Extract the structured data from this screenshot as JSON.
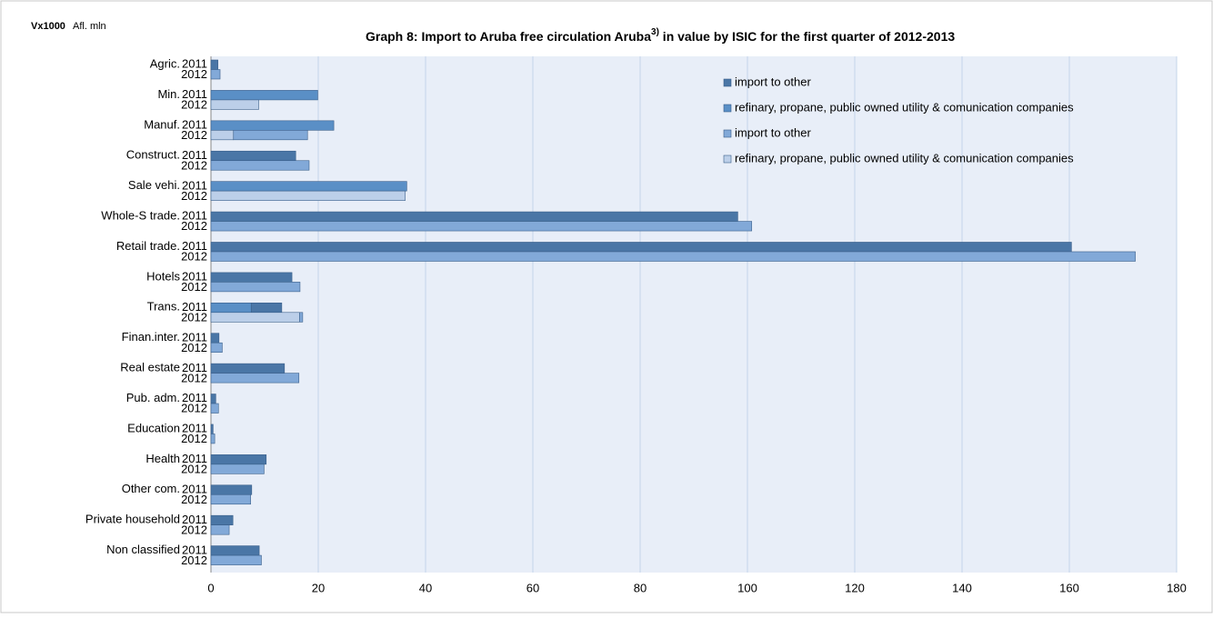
{
  "chart_data": {
    "type": "stacked-bar-horizontal",
    "unit_bold": "Vx1000",
    "unit": "Afl. mln",
    "title": "Graph 8: Import to Aruba free circulation Aruba",
    "title_note": "3)",
    "title_end": " in value by ISIC for the first quarter of 2012-2013",
    "groups": [
      "Agric.",
      "Min.",
      "Manuf.",
      "Construct.",
      "Sale vehi.",
      "Whole-S trade.",
      "Retail trade.",
      "Hotels",
      "Trans.",
      "Finan.inter.",
      "Real estate",
      "Pub. adm.",
      "Education",
      "Health",
      "Other com.",
      "Private household",
      "Non classified"
    ],
    "categories": [
      "2011",
      "2012",
      "2011",
      "2012",
      "2011",
      "2012",
      "2011",
      "2012",
      "2011",
      "2012",
      "2011",
      "2012",
      "2011",
      "2012",
      "2011",
      "2012",
      "2011",
      "2012",
      "2011",
      "2012",
      "2011",
      "2012",
      "2011",
      "2012",
      "2011",
      "2012",
      "2011",
      "2012",
      "2011",
      "2012",
      "2011",
      "2012",
      "2011",
      "2012"
    ],
    "series": [
      {
        "name": "import to other",
        "color": "#4a76a6",
        "values": [
          1.3,
          null,
          null,
          null,
          null,
          null,
          15.8,
          null,
          null,
          null,
          98.2,
          null,
          160.4,
          null,
          15.1,
          null,
          5.7,
          null,
          1.5,
          null,
          13.7,
          null,
          0.9,
          null,
          0.4,
          null,
          10.3,
          null,
          7.6,
          null,
          4.1,
          null,
          9,
          null
        ]
      },
      {
        "name": "refinary, propane, public owned utility & comunication companies",
        "color": "#5a8fc6",
        "values": [
          null,
          null,
          19.9,
          null,
          22.9,
          null,
          null,
          null,
          36.5,
          null,
          null,
          null,
          null,
          null,
          null,
          null,
          7.5,
          null,
          null,
          null,
          null,
          null,
          null,
          null,
          null,
          null,
          null,
          null,
          null,
          null,
          null,
          null,
          null,
          null
        ]
      },
      {
        "name": "import to other",
        "color": "#82a9d8",
        "values": [
          null,
          1.7,
          null,
          null,
          null,
          13.8,
          null,
          18.3,
          null,
          null,
          null,
          100.8,
          null,
          172.3,
          null,
          16.6,
          null,
          0.6,
          null,
          2.1,
          null,
          16.4,
          null,
          1.4,
          null,
          0.7,
          null,
          9.9,
          null,
          7.4,
          null,
          3.4,
          null,
          9.4
        ]
      },
      {
        "name": "refinary, propane, public owned utility & comunication companies",
        "color": "#bccfe9",
        "values": [
          null,
          null,
          null,
          8.9,
          null,
          4.2,
          null,
          null,
          null,
          36.2,
          null,
          null,
          null,
          null,
          null,
          null,
          null,
          16.5,
          null,
          null,
          null,
          null,
          null,
          null,
          null,
          null,
          null,
          null,
          null,
          null,
          null,
          null,
          null,
          null
        ]
      }
    ],
    "xlim": [
      0,
      180
    ],
    "xticks": [
      0,
      20,
      40,
      60,
      80,
      100,
      120,
      140,
      160,
      180
    ],
    "grid": true
  }
}
